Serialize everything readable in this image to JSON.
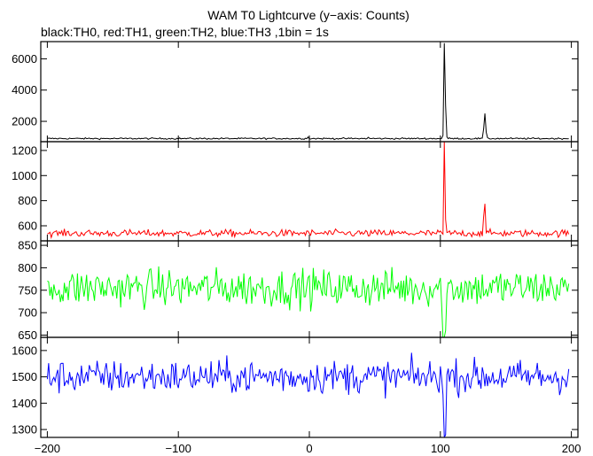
{
  "chart_data": {
    "type": "line",
    "title": "WAM T0 Lightcurve (y−axis: Counts)",
    "subtitle": "black:TH0, red:TH1, green:TH2, blue:TH3 ,1bin = 1s",
    "x_range": [
      -205,
      205
    ],
    "x_ticks": [
      -200,
      -100,
      0,
      100,
      200
    ],
    "x_tick_labels": [
      "−200",
      "−100",
      "0",
      "100",
      "200"
    ],
    "panels": [
      {
        "series_name": "TH0",
        "color": "#000000",
        "ylim": [
          700,
          7100
        ],
        "y_ticks": [
          2000,
          4000,
          6000
        ],
        "y_tick_labels": [
          "2000",
          "4000",
          "6000"
        ],
        "baseline": 900,
        "noise": 35,
        "spikes": [
          {
            "x": 102,
            "y": 1100
          },
          {
            "x": 103,
            "y": 7000
          },
          {
            "x": 104,
            "y": 3000
          },
          {
            "x": 105,
            "y": 1000
          },
          {
            "x": 133,
            "y": 1500
          },
          {
            "x": 134,
            "y": 2500
          },
          {
            "x": 135,
            "y": 1300
          },
          {
            "x": -1,
            "y": 1000
          },
          {
            "x": 45,
            "y": 980
          }
        ]
      },
      {
        "series_name": "TH1",
        "color": "#ff0000",
        "ylim": [
          480,
          1270
        ],
        "y_ticks": [
          600,
          800,
          1000,
          1200
        ],
        "y_tick_labels": [
          "600",
          "800",
          "1000",
          "1200"
        ],
        "baseline": 540,
        "noise": 20,
        "spikes": [
          {
            "x": 103,
            "y": 1270
          },
          {
            "x": 104,
            "y": 650
          },
          {
            "x": 133,
            "y": 670
          },
          {
            "x": 134,
            "y": 775
          }
        ]
      },
      {
        "series_name": "TH2",
        "color": "#00ff00",
        "ylim": [
          645,
          860
        ],
        "y_ticks": [
          650,
          700,
          750,
          800,
          850
        ],
        "y_tick_labels": [
          "650",
          "700",
          "750",
          "800",
          "850"
        ],
        "baseline": 755,
        "noise": 30,
        "spikes": [
          {
            "x": 102,
            "y": 645
          },
          {
            "x": 103,
            "y": 645
          },
          {
            "x": 104,
            "y": 660
          }
        ]
      },
      {
        "series_name": "TH3",
        "color": "#0000ff",
        "ylim": [
          1270,
          1650
        ],
        "y_ticks": [
          1300,
          1400,
          1500,
          1600
        ],
        "y_tick_labels": [
          "1300",
          "1400",
          "1500",
          "1600"
        ],
        "baseline": 1500,
        "noise": 45,
        "spikes": [
          {
            "x": 103,
            "y": 1270
          },
          {
            "x": 104,
            "y": 1280
          }
        ]
      }
    ]
  }
}
